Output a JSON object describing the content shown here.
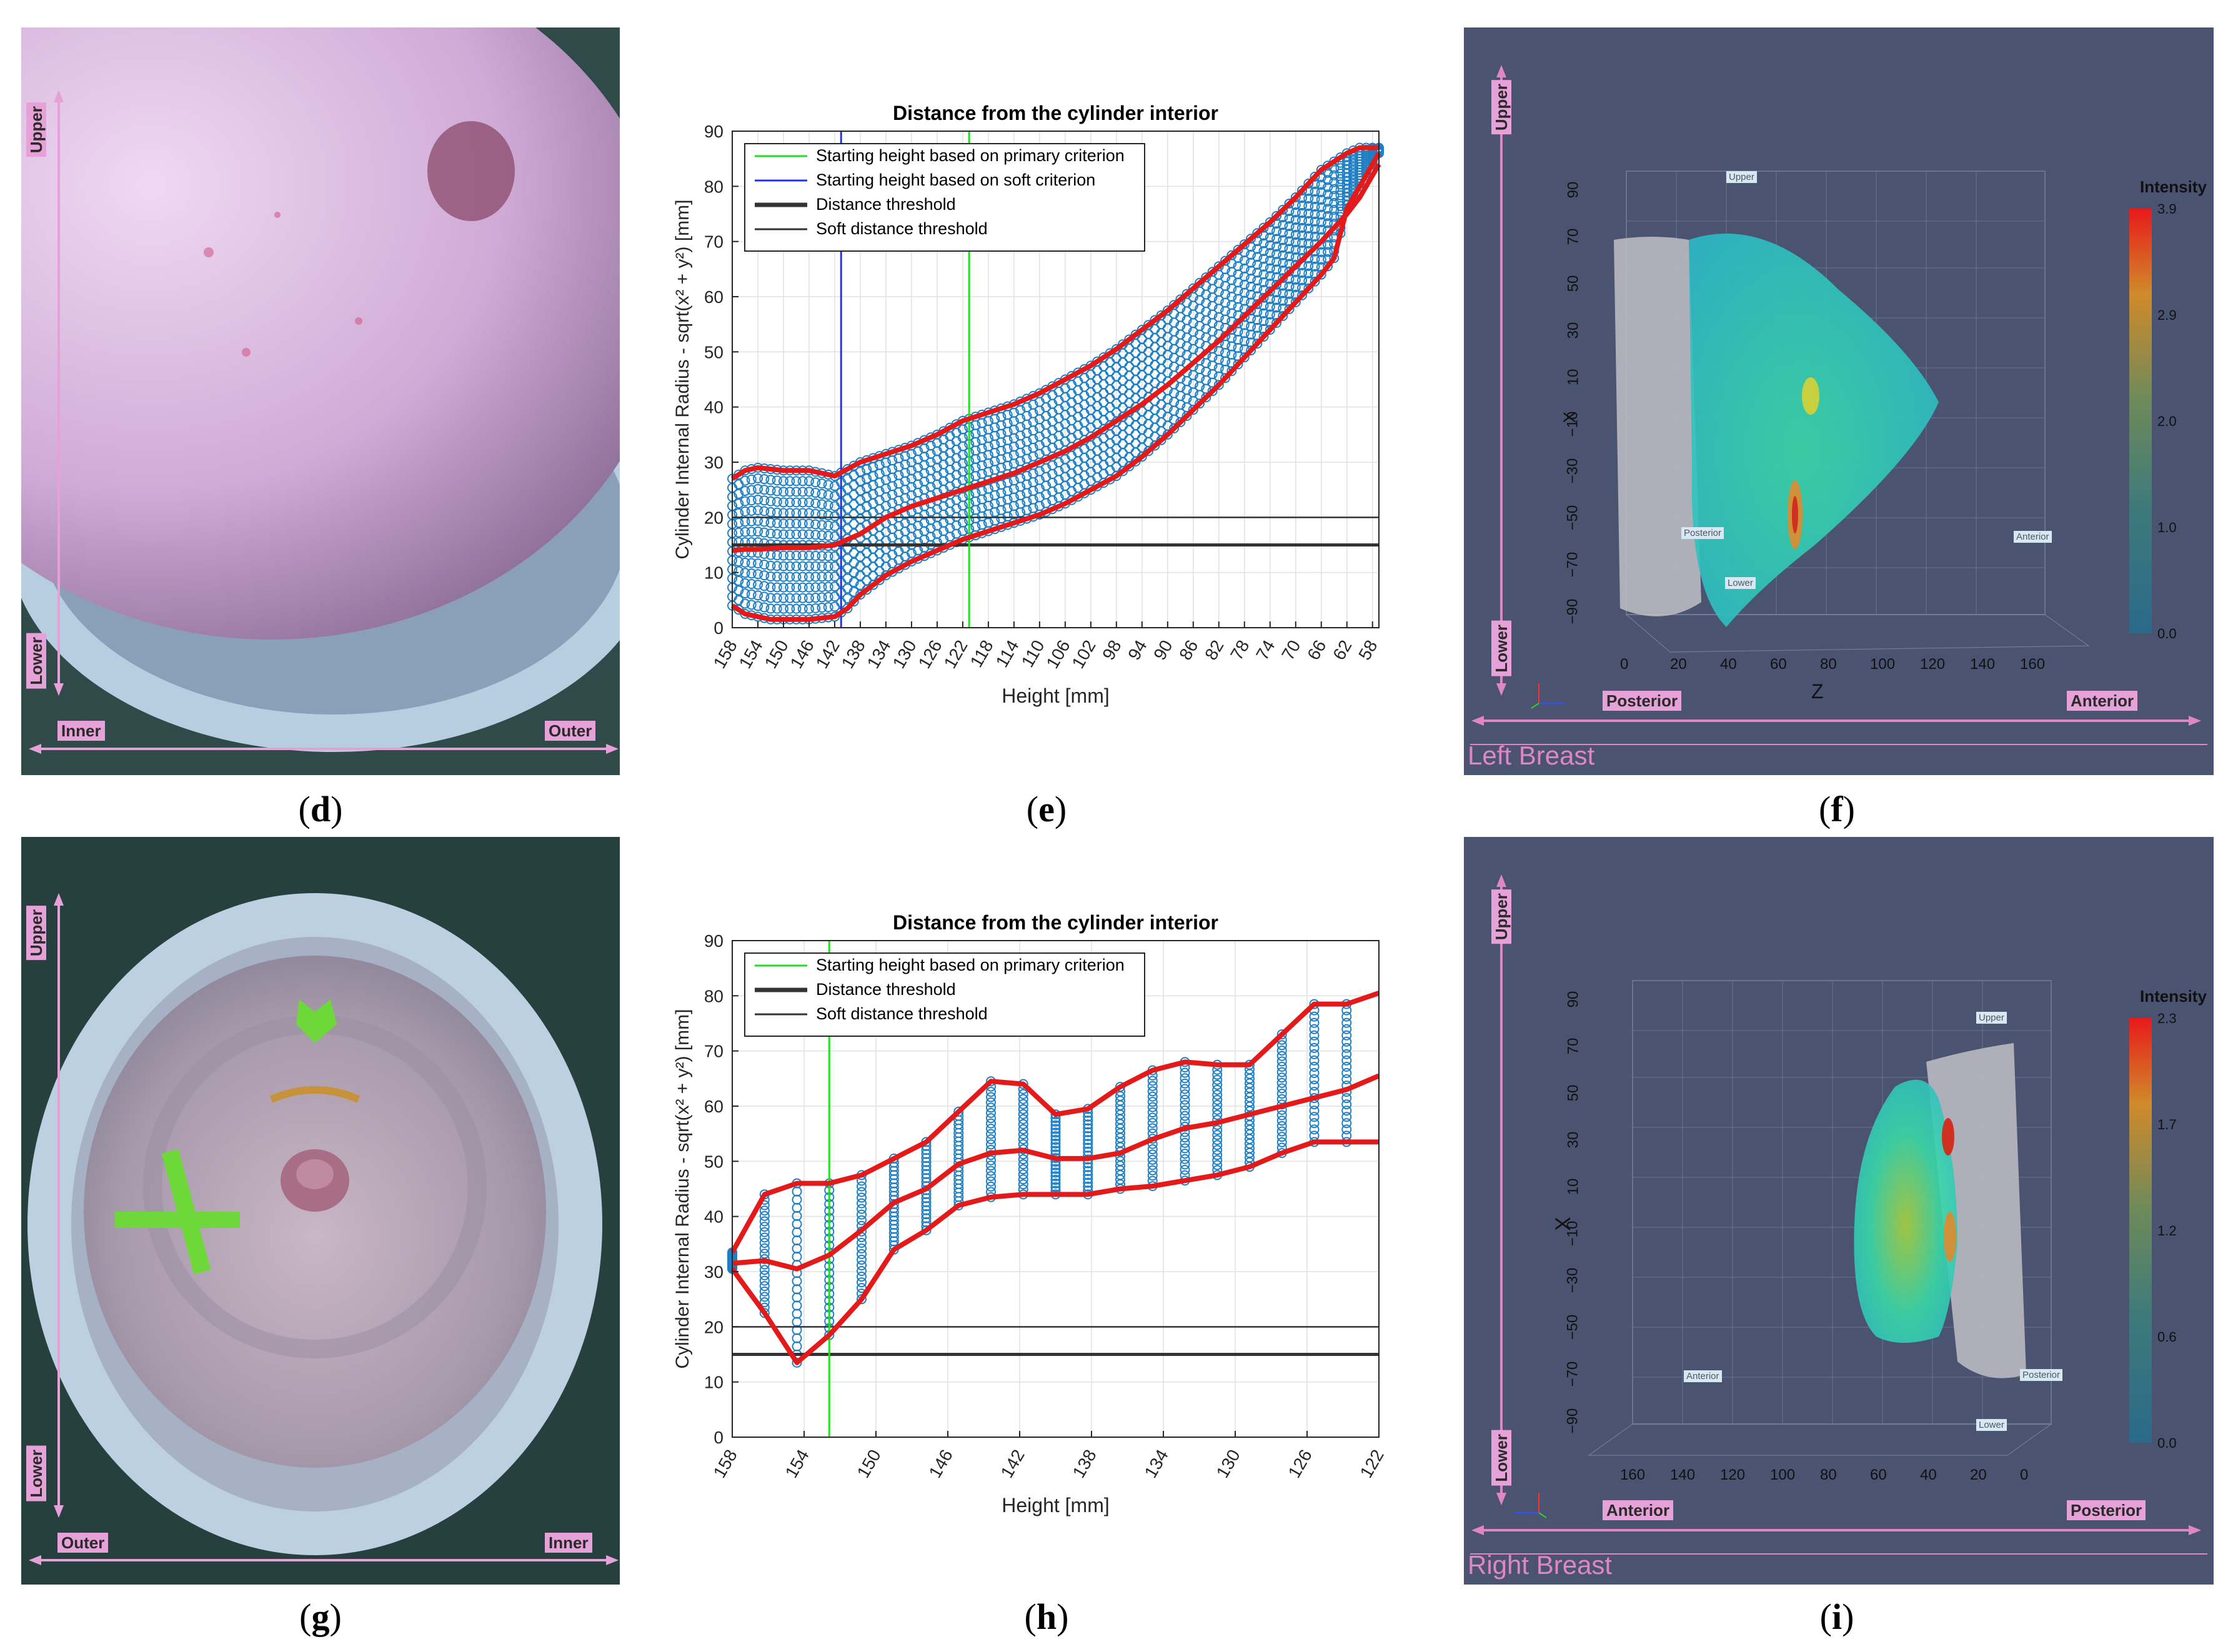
{
  "captions": {
    "d": "d",
    "e": "e",
    "f": "f",
    "g": "g",
    "h": "h",
    "i": "i"
  },
  "photo_d": {
    "upper": "Upper",
    "lower": "Lower",
    "left": "Inner",
    "right": "Outer"
  },
  "photo_g": {
    "upper": "Upper",
    "lower": "Lower",
    "left": "Outer",
    "right": "Inner"
  },
  "viz_f": {
    "upper": "Upper",
    "lower": "Lower",
    "left": "Posterior",
    "right": "Anterior",
    "caption": "Left Breast",
    "colorbar_title": "Intensity",
    "colorbar_ticks": [
      "3.9",
      "2.9",
      "2.0",
      "1.0",
      "0.0"
    ],
    "x_axis_title": "X",
    "z_axis_title": "Z",
    "x_ticks": [
      "90",
      "70",
      "50",
      "30",
      "10",
      "−10",
      "−30",
      "−50",
      "−70",
      "−90"
    ],
    "z_ticks": [
      "0",
      "20",
      "40",
      "60",
      "80",
      "100",
      "120",
      "140",
      "160"
    ],
    "in_tags": {
      "upper": "Upper",
      "lower": "Lower",
      "posterior": "Posterior",
      "anterior": "Anterior"
    },
    "colors": {
      "bg": "#4a5470",
      "accent": "#e086c8"
    }
  },
  "viz_i": {
    "upper": "Upper",
    "lower": "Lower",
    "left": "Anterior",
    "right": "Posterior",
    "caption": "Right Breast",
    "colorbar_title": "Intensity",
    "colorbar_ticks": [
      "2.3",
      "1.7",
      "1.2",
      "0.6",
      "0.0"
    ],
    "x_axis_title": "X",
    "x_ticks": [
      "90",
      "70",
      "50",
      "30",
      "10",
      "−10",
      "−30",
      "−50",
      "−70",
      "−90"
    ],
    "z_ticks": [
      "160",
      "140",
      "120",
      "100",
      "80",
      "60",
      "40",
      "20",
      "0"
    ],
    "in_tags": {
      "upper": "Upper",
      "lower": "Lower",
      "posterior": "Posterior",
      "anterior": "Anterior"
    }
  },
  "chart_data": [
    {
      "id": "e",
      "type": "line",
      "title": "Distance from the cylinder interior",
      "xlabel": "Height [mm]",
      "ylabel": "Cylinder Internal Radius - sqrt(x² + y²) [mm]",
      "x_reversed": true,
      "xlim": [
        158,
        57
      ],
      "ylim": [
        0,
        90
      ],
      "x_ticks": [
        158,
        154,
        150,
        146,
        142,
        138,
        134,
        130,
        126,
        122,
        118,
        114,
        110,
        106,
        102,
        98,
        94,
        90,
        86,
        82,
        78,
        74,
        70,
        66,
        62,
        58
      ],
      "y_ticks": [
        0,
        10,
        20,
        30,
        40,
        50,
        60,
        70,
        80,
        90
      ],
      "grid": true,
      "legend": {
        "placement": "top-left",
        "entries": [
          {
            "label": "Starting height based on primary criterion",
            "color": "#22dd22",
            "width": 3
          },
          {
            "label": "Starting height based on soft criterion",
            "color": "#2233ee",
            "width": 3
          },
          {
            "label": "Distance threshold",
            "color": "#333333",
            "width": 7
          },
          {
            "label": "Soft distance threshold",
            "color": "#333333",
            "width": 3
          }
        ]
      },
      "vlines": [
        {
          "name": "Starting height based on primary criterion",
          "x": 121,
          "color": "#22dd22"
        },
        {
          "name": "Starting height based on soft criterion",
          "x": 141,
          "color": "#2233ee"
        }
      ],
      "hlines": [
        {
          "name": "Distance threshold",
          "y": 15,
          "color": "#333333",
          "width": 5
        },
        {
          "name": "Soft distance threshold",
          "y": 20,
          "color": "#333333",
          "width": 2.5
        }
      ],
      "series": [
        {
          "role": "max",
          "x": [
            158,
            156,
            154,
            150,
            146,
            142,
            138,
            134,
            130,
            126,
            122,
            118,
            114,
            110,
            106,
            102,
            98,
            94,
            90,
            86,
            82,
            78,
            74,
            70,
            66,
            62,
            60,
            58,
            57
          ],
          "values": [
            27,
            28.5,
            29,
            28.5,
            28.5,
            27.5,
            30,
            31.5,
            33,
            35,
            37.5,
            39,
            40.5,
            42.5,
            45,
            47.5,
            50.5,
            54,
            57.5,
            61.5,
            65.5,
            69.5,
            73.5,
            78,
            83,
            86,
            87,
            87,
            87
          ]
        },
        {
          "role": "mean",
          "x": [
            158,
            156,
            154,
            150,
            146,
            142,
            138,
            134,
            130,
            126,
            122,
            118,
            114,
            110,
            106,
            102,
            98,
            94,
            90,
            86,
            82,
            78,
            74,
            70,
            66,
            62,
            60,
            58,
            57
          ],
          "values": [
            14,
            14.2,
            14.2,
            14.5,
            14.5,
            15,
            17,
            20,
            22,
            23.5,
            25,
            26.5,
            28,
            30,
            32,
            34.5,
            37.5,
            40.5,
            44,
            48,
            52,
            56.5,
            61,
            65.5,
            70,
            75,
            78,
            82,
            84
          ]
        },
        {
          "role": "min",
          "x": [
            158,
            156,
            154,
            152,
            150,
            146,
            142,
            140,
            138,
            134,
            130,
            126,
            122,
            118,
            114,
            110,
            106,
            102,
            98,
            94,
            90,
            86,
            82,
            78,
            74,
            70,
            66,
            64,
            62,
            60,
            58,
            57
          ],
          "values": [
            4,
            2.5,
            2,
            1.5,
            1.5,
            1.5,
            2,
            3.5,
            6,
            9.5,
            12,
            14,
            16,
            17.5,
            19,
            20.5,
            22.5,
            25,
            27.5,
            31,
            35,
            39.5,
            44,
            49,
            54,
            59,
            64,
            67,
            76,
            80,
            84,
            86
          ]
        }
      ]
    },
    {
      "id": "h",
      "type": "line",
      "title": "Distance from the cylinder interior",
      "xlabel": "Height [mm]",
      "ylabel": "Cylinder Internal Radius - sqrt(x² + y²) [mm]",
      "x_reversed": true,
      "xlim": [
        158,
        122
      ],
      "ylim": [
        0,
        90
      ],
      "x_ticks": [
        158,
        154,
        150,
        146,
        142,
        138,
        134,
        130,
        126,
        122
      ],
      "y_ticks": [
        0,
        10,
        20,
        30,
        40,
        50,
        60,
        70,
        80,
        90
      ],
      "grid": true,
      "legend": {
        "placement": "top-left",
        "entries": [
          {
            "label": "Starting height based on primary criterion",
            "color": "#22dd22",
            "width": 3
          },
          {
            "label": "Distance threshold",
            "color": "#333333",
            "width": 7
          },
          {
            "label": "Soft distance threshold",
            "color": "#333333",
            "width": 3
          }
        ]
      },
      "vlines": [
        {
          "name": "Starting height based on primary criterion",
          "x": 152.6,
          "color": "#22dd22"
        }
      ],
      "hlines": [
        {
          "name": "Distance threshold",
          "y": 15,
          "color": "#333333",
          "width": 5
        },
        {
          "name": "Soft distance threshold",
          "y": 20,
          "color": "#333333",
          "width": 2.5
        }
      ],
      "series": [
        {
          "role": "max",
          "x": [
            158,
            156.2,
            154.4,
            152.6,
            150.8,
            149,
            147.2,
            145.4,
            143.6,
            141.8,
            140,
            138.2,
            136.4,
            134.6,
            132.8,
            131,
            129.2,
            127.4,
            125.6,
            123.8,
            122
          ],
          "values": [
            33.5,
            44,
            46,
            46,
            47.5,
            50.5,
            53.5,
            59,
            64.5,
            64,
            58.5,
            59.5,
            63.5,
            66.5,
            68,
            67.5,
            67.5,
            73,
            78.5,
            78.5,
            80.5
          ]
        },
        {
          "role": "mean",
          "x": [
            158,
            156.2,
            154.4,
            152.6,
            150.8,
            149,
            147.2,
            145.4,
            143.6,
            141.8,
            140,
            138.2,
            136.4,
            134.6,
            132.8,
            131,
            129.2,
            127.4,
            125.6,
            123.8,
            122
          ],
          "values": [
            31.5,
            32,
            30.5,
            33,
            37.5,
            42.5,
            45,
            49.5,
            51.5,
            52,
            50.5,
            50.5,
            51.5,
            54,
            56,
            57,
            58.5,
            60,
            61.5,
            63,
            65.5
          ]
        },
        {
          "role": "min",
          "x": [
            158,
            156.2,
            154.4,
            152.6,
            150.8,
            149,
            147.2,
            145.4,
            143.6,
            141.8,
            140,
            138.2,
            136.4,
            134.6,
            132.8,
            131,
            129.2,
            127.4,
            125.6,
            123.8,
            122
          ],
          "values": [
            30.5,
            22.5,
            13.5,
            18.5,
            25,
            34,
            37.5,
            42,
            43.5,
            44,
            44,
            44,
            45,
            45.5,
            46.5,
            47.5,
            49,
            51.5,
            53.5,
            53.5,
            53.5
          ]
        }
      ]
    }
  ]
}
